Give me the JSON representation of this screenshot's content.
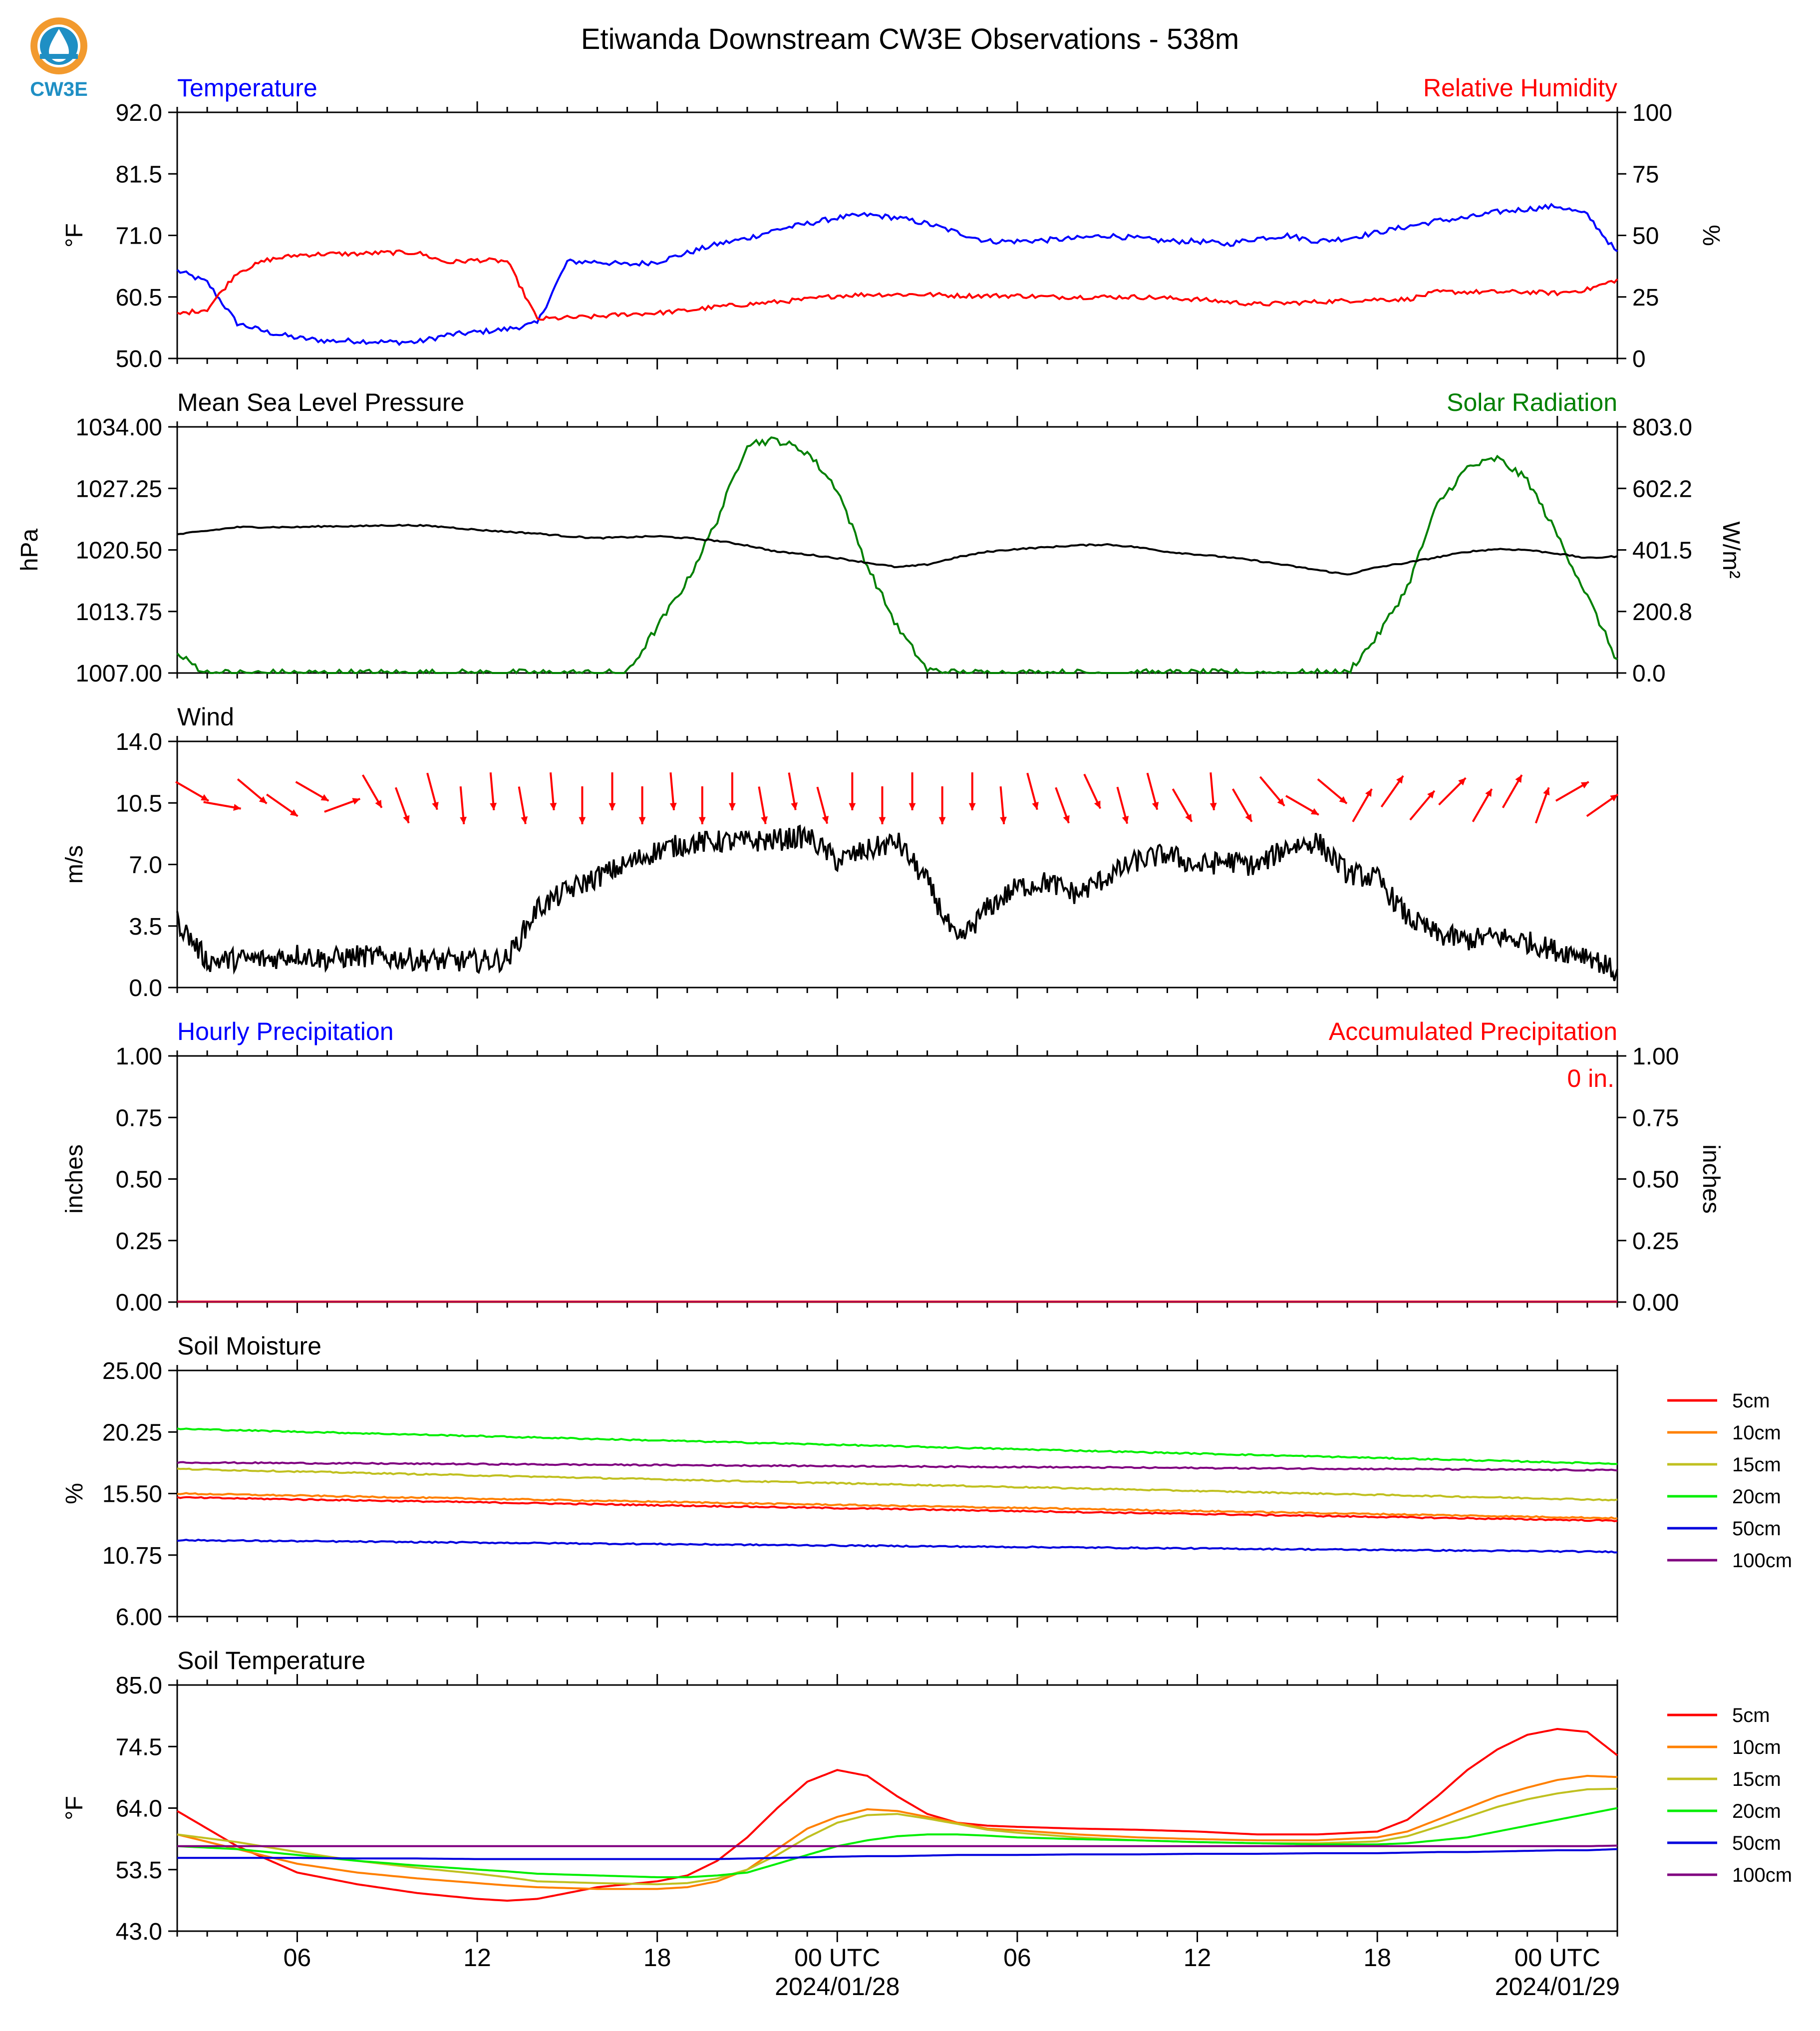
{
  "title": "Etiwanda Downstream CW3E Observations - 538m",
  "logo": {
    "text": "CW3E",
    "icon": "cw3e-drop-logo",
    "colors": {
      "orange": "#f29a2e",
      "blue": "#1f8fc4"
    }
  },
  "time_axis": {
    "start": "2024-01-27 02 UTC",
    "end": "2024-01-29 02 UTC",
    "tick_labels": [
      "06",
      "12",
      "18",
      "00 UTC",
      "06",
      "12",
      "18",
      "00 UTC"
    ],
    "date_labels": [
      "2024/01/28",
      "2024/01/29"
    ]
  },
  "legend_soil_moisture": [
    "5cm",
    "10cm",
    "15cm",
    "20cm",
    "50cm",
    "100cm"
  ],
  "legend_soil_temperature": [
    "5cm",
    "10cm",
    "15cm",
    "20cm",
    "50cm",
    "100cm"
  ],
  "colors": {
    "temperature": "#0000ff",
    "rh": "#ff0000",
    "pressure": "#000000",
    "solar": "#008000",
    "wind": "#000000",
    "wind_arrow": "#ff0000",
    "precip_hourly": "#0000ff",
    "precip_accum": "#ff0000",
    "d5": "#ff0000",
    "d10": "#ff8000",
    "d15": "#c0c020",
    "d20": "#00ee00",
    "d50": "#0000dd",
    "d100": "#800080"
  },
  "chart_data": [
    {
      "type": "line",
      "title_left": "Temperature",
      "title_right": "Relative Humidity",
      "ylabel_left": "°F",
      "ylabel_right": "%",
      "ylim_left": [
        50,
        92
      ],
      "yticks_left": [
        "50.0",
        "60.5",
        "71.0",
        "81.5",
        "92.0"
      ],
      "ylim_right": [
        0,
        100
      ],
      "yticks_right": [
        "0",
        "25",
        "50",
        "75",
        "100"
      ],
      "x": [
        0,
        1,
        2,
        3,
        4,
        5,
        6,
        7,
        8,
        9,
        10,
        11,
        12,
        13,
        14,
        15,
        16,
        17,
        18,
        19,
        20,
        21,
        22,
        23,
        24,
        25,
        26,
        27,
        28,
        29,
        30,
        31,
        32,
        33,
        34,
        35,
        36,
        37,
        38,
        39,
        40,
        41,
        42,
        43,
        44,
        45,
        46,
        47,
        48
      ],
      "series": [
        {
          "name": "Temperature",
          "axis": "left",
          "values": [
            65,
            63,
            56,
            54.5,
            53.5,
            53,
            53,
            52.8,
            52.8,
            54,
            54.5,
            55,
            56,
            66.5,
            66.5,
            66,
            66.5,
            68,
            69.5,
            70.5,
            72,
            73,
            74,
            74.5,
            74,
            73,
            71.5,
            70,
            70,
            70.2,
            70.5,
            71,
            70.5,
            70,
            70,
            69.5,
            70.5,
            71,
            70,
            70.5,
            71.5,
            72.5,
            73.5,
            74,
            75,
            75.5,
            76,
            74.5,
            68
          ]
        },
        {
          "name": "Relative Humidity",
          "axis": "right",
          "values": [
            18,
            20,
            35,
            40,
            42,
            42.5,
            42.5,
            43,
            43,
            39,
            40,
            39.5,
            16,
            16.5,
            17,
            18,
            18.5,
            19.5,
            21,
            22,
            23,
            24,
            25.5,
            26,
            26,
            26,
            25.5,
            25.5,
            25.5,
            25,
            25,
            25,
            25,
            24.5,
            24,
            23,
            22,
            22.5,
            23,
            23.5,
            24,
            24,
            27,
            27,
            27,
            27,
            26.5,
            28,
            32
          ]
        }
      ]
    },
    {
      "type": "line",
      "title_left": "Mean Sea Level Pressure",
      "title_right": "Solar Radiation",
      "ylabel_left": "hPa",
      "ylabel_right": "W/m²",
      "ylim_left": [
        1007,
        1034
      ],
      "yticks_left": [
        "1007.00",
        "1013.75",
        "1020.50",
        "1027.25",
        "1034.00"
      ],
      "ylim_right": [
        0,
        803
      ],
      "yticks_right": [
        "0.0",
        "200.8",
        "401.5",
        "602.2",
        "803.0"
      ],
      "x": [
        0,
        1,
        2,
        3,
        4,
        5,
        6,
        7,
        8,
        9,
        10,
        11,
        12,
        13,
        14,
        15,
        16,
        17,
        18,
        19,
        20,
        21,
        22,
        23,
        24,
        25,
        26,
        27,
        28,
        29,
        30,
        31,
        32,
        33,
        34,
        35,
        36,
        37,
        38,
        39,
        40,
        41,
        42,
        43,
        44,
        45,
        46,
        47,
        48
      ],
      "series": [
        {
          "name": "Mean Sea Level Pressure",
          "axis": "left",
          "values": [
            1022.2,
            1022.6,
            1023.0,
            1023.0,
            1023.0,
            1023.1,
            1023.1,
            1023.2,
            1023.2,
            1023.0,
            1022.7,
            1022.5,
            1022.3,
            1022.0,
            1021.8,
            1021.9,
            1022.0,
            1021.8,
            1021.5,
            1021.0,
            1020.3,
            1020.0,
            1019.6,
            1019.1,
            1018.6,
            1018.9,
            1019.7,
            1020.3,
            1020.6,
            1020.8,
            1021.0,
            1021.1,
            1020.8,
            1020.3,
            1020.0,
            1019.7,
            1019.3,
            1018.8,
            1018.3,
            1017.8,
            1018.6,
            1019.1,
            1019.7,
            1020.3,
            1020.6,
            1020.5,
            1020.1,
            1019.6,
            1019.8
          ]
        },
        {
          "name": "Solar Radiation",
          "axis": "right",
          "values": [
            60,
            0,
            0,
            0,
            0,
            0,
            0,
            0,
            0,
            0,
            0,
            0,
            0,
            0,
            0,
            0,
            150,
            300,
            500,
            750,
            760,
            720,
            600,
            350,
            150,
            10,
            0,
            0,
            0,
            0,
            0,
            0,
            0,
            0,
            0,
            0,
            0,
            0,
            0,
            0,
            120,
            280,
            550,
            670,
            700,
            630,
            450,
            250,
            40
          ]
        }
      ]
    },
    {
      "type": "line",
      "title_left": "Wind",
      "ylabel_left": "m/s",
      "ylim_left": [
        0,
        14
      ],
      "yticks_left": [
        "0.0",
        "3.5",
        "7.0",
        "10.5",
        "14.0"
      ],
      "x": [
        0,
        1,
        2,
        3,
        4,
        5,
        6,
        7,
        8,
        9,
        10,
        11,
        12,
        13,
        14,
        15,
        16,
        17,
        18,
        19,
        20,
        21,
        22,
        23,
        24,
        25,
        26,
        27,
        28,
        29,
        30,
        31,
        32,
        33,
        34,
        35,
        36,
        37,
        38,
        39,
        40,
        41,
        42,
        43,
        44,
        45,
        46,
        47,
        48
      ],
      "series": [
        {
          "name": "Wind speed",
          "axis": "left",
          "values": [
            3.8,
            1.5,
            1.6,
            1.6,
            1.9,
            1.6,
            1.8,
            1.7,
            1.6,
            1.5,
            1.5,
            1.6,
            4.5,
            5.5,
            6.3,
            7.0,
            7.8,
            8.2,
            8.3,
            8.3,
            8.4,
            8.6,
            7.2,
            7.8,
            8.3,
            6.0,
            2.5,
            4.5,
            5.7,
            6.0,
            5.3,
            6.3,
            7.2,
            7.6,
            6.9,
            7.2,
            6.9,
            8.0,
            8.3,
            6.5,
            6.2,
            4.0,
            3.0,
            2.7,
            2.9,
            2.6,
            2.1,
            1.9,
            0.8
          ]
        },
        {
          "name": "Wind direction (to, deg)",
          "axis": "none",
          "values": [
            120,
            100,
            130,
            125,
            120,
            70,
            150,
            160,
            165,
            175,
            175,
            170,
            175,
            180,
            180,
            180,
            175,
            180,
            180,
            170,
            170,
            165,
            180,
            180,
            180,
            180,
            180,
            175,
            165,
            160,
            155,
            165,
            165,
            150,
            175,
            150,
            140,
            120,
            130,
            30,
            35,
            40,
            45,
            30,
            30,
            20,
            60,
            55,
            60
          ]
        }
      ]
    },
    {
      "type": "line",
      "title_left": "Hourly Precipitation",
      "title_right": "Accumulated Precipitation",
      "annotation": "0 in.",
      "ylabel_left": "inches",
      "ylabel_right": "inches",
      "ylim_left": [
        0,
        1
      ],
      "yticks_left": [
        "0.00",
        "0.25",
        "0.50",
        "0.75",
        "1.00"
      ],
      "ylim_right": [
        0,
        1
      ],
      "yticks_right": [
        "0.00",
        "0.25",
        "0.50",
        "0.75",
        "1.00"
      ],
      "x": [
        0,
        48
      ],
      "series": [
        {
          "name": "Hourly Precipitation",
          "axis": "left",
          "values": [
            0,
            0
          ]
        },
        {
          "name": "Accumulated Precipitation",
          "axis": "right",
          "values": [
            0,
            0
          ]
        }
      ]
    },
    {
      "type": "line",
      "title_left": "Soil Moisture",
      "ylabel_left": "%",
      "ylim_left": [
        6,
        25
      ],
      "yticks_left": [
        "6.00",
        "10.75",
        "15.50",
        "20.25",
        "25.00"
      ],
      "x": [
        0,
        48
      ],
      "series": [
        {
          "name": "5cm",
          "axis": "left",
          "values": [
            15.2,
            13.4
          ]
        },
        {
          "name": "10cm",
          "axis": "left",
          "values": [
            15.5,
            13.6
          ]
        },
        {
          "name": "15cm",
          "axis": "left",
          "values": [
            17.4,
            15.0
          ]
        },
        {
          "name": "20cm",
          "axis": "left",
          "values": [
            20.5,
            17.8
          ]
        },
        {
          "name": "50cm",
          "axis": "left",
          "values": [
            11.9,
            11.0
          ]
        },
        {
          "name": "100cm",
          "axis": "left",
          "values": [
            17.9,
            17.3
          ]
        }
      ]
    },
    {
      "type": "line",
      "title_left": "Soil Temperature",
      "ylabel_left": "°F",
      "ylim_left": [
        43,
        85
      ],
      "yticks_left": [
        "43.0",
        "53.5",
        "64.0",
        "74.5",
        "85.0"
      ],
      "x": [
        0,
        2,
        4,
        6,
        8,
        10,
        11,
        12,
        14,
        16,
        17,
        18,
        19,
        20,
        21,
        22,
        23,
        24,
        25,
        26,
        27,
        28,
        30,
        32,
        34,
        36,
        38,
        40,
        41,
        42,
        43,
        44,
        45,
        46,
        47,
        48
      ],
      "series": [
        {
          "name": "5cm",
          "axis": "left",
          "values": [
            63.5,
            57.5,
            53.0,
            51.0,
            49.5,
            48.5,
            48.2,
            48.5,
            50.5,
            51.5,
            52.5,
            55.0,
            59.0,
            64.0,
            68.5,
            70.5,
            69.5,
            66.0,
            63.0,
            61.5,
            61.0,
            60.8,
            60.5,
            60.3,
            60.0,
            59.5,
            59.5,
            60.0,
            62.0,
            66.0,
            70.5,
            74.0,
            76.5,
            77.5,
            77.0,
            73.0
          ]
        },
        {
          "name": "10cm",
          "axis": "left",
          "values": [
            59.5,
            57.0,
            54.5,
            53.0,
            52.0,
            51.2,
            50.8,
            50.5,
            50.2,
            50.2,
            50.5,
            51.5,
            53.5,
            57.0,
            60.5,
            62.5,
            63.8,
            63.5,
            62.5,
            61.5,
            60.5,
            60.2,
            59.5,
            59.0,
            58.7,
            58.5,
            58.5,
            59.0,
            60.0,
            62.0,
            64.0,
            66.0,
            67.5,
            68.8,
            69.5,
            69.3
          ]
        },
        {
          "name": "15cm",
          "axis": "left",
          "values": [
            59.5,
            58.2,
            56.5,
            55.0,
            53.8,
            52.8,
            52.2,
            51.5,
            51.2,
            51.0,
            51.2,
            52.0,
            53.5,
            56.0,
            59.0,
            61.5,
            62.8,
            63.0,
            62.2,
            61.3,
            60.3,
            59.8,
            59.0,
            58.5,
            58.2,
            58.0,
            58.0,
            58.3,
            59.2,
            60.8,
            62.5,
            64.2,
            65.5,
            66.5,
            67.2,
            67.3
          ]
        },
        {
          "name": "20cm",
          "axis": "left",
          "values": [
            57.5,
            57.0,
            56.0,
            55.0,
            54.2,
            53.5,
            53.2,
            52.8,
            52.5,
            52.2,
            52.2,
            52.5,
            53.0,
            54.5,
            56.0,
            57.5,
            58.5,
            59.2,
            59.5,
            59.5,
            59.3,
            59.0,
            58.7,
            58.5,
            58.2,
            58.0,
            57.8,
            57.8,
            58.0,
            58.5,
            59.0,
            60.0,
            61.0,
            62.0,
            63.0,
            64.0
          ]
        },
        {
          "name": "50cm",
          "axis": "left",
          "values": [
            55.5,
            55.5,
            55.5,
            55.4,
            55.4,
            55.3,
            55.3,
            55.3,
            55.3,
            55.3,
            55.3,
            55.3,
            55.4,
            55.5,
            55.6,
            55.7,
            55.8,
            55.8,
            55.9,
            56.0,
            56.0,
            56.0,
            56.1,
            56.1,
            56.2,
            56.2,
            56.3,
            56.3,
            56.4,
            56.5,
            56.5,
            56.6,
            56.7,
            56.8,
            56.8,
            57.0
          ]
        },
        {
          "name": "100cm",
          "axis": "left",
          "values": [
            57.5,
            57.5,
            57.5,
            57.5,
            57.5,
            57.5,
            57.5,
            57.5,
            57.5,
            57.5,
            57.5,
            57.5,
            57.5,
            57.5,
            57.5,
            57.5,
            57.5,
            57.5,
            57.5,
            57.5,
            57.5,
            57.5,
            57.5,
            57.5,
            57.5,
            57.5,
            57.5,
            57.5,
            57.5,
            57.5,
            57.5,
            57.5,
            57.5,
            57.5,
            57.5,
            57.6
          ]
        }
      ]
    }
  ]
}
